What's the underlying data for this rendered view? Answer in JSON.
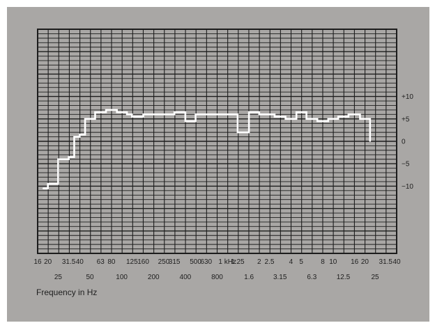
{
  "chart_data": {
    "type": "line",
    "style": "step",
    "xlabel": "Frequency in Hz",
    "ylabel": "",
    "x_scale": "log",
    "x_ticks_row1": [
      "16",
      "20",
      "31.5",
      "40",
      "63",
      "80",
      "125",
      "160",
      "250",
      "315",
      "500",
      "630",
      "1 kHz",
      "1.25",
      "2",
      "2.5",
      "4",
      "5",
      "8",
      "10",
      "16",
      "20",
      "31.5",
      "40"
    ],
    "x_ticks_row2": [
      "25",
      "50",
      "100",
      "200",
      "400",
      "800",
      "1.6",
      "3.15",
      "6.3",
      "12.5",
      "25"
    ],
    "x_tick_values_row1": [
      16,
      20,
      31.5,
      40,
      63,
      80,
      125,
      160,
      250,
      315,
      500,
      630,
      1000,
      1250,
      2000,
      2500,
      4000,
      5000,
      8000,
      10000,
      16000,
      20000,
      31500,
      40000
    ],
    "x_tick_values_row2": [
      25,
      50,
      100,
      200,
      400,
      800,
      1600,
      3150,
      6300,
      12500,
      25000
    ],
    "y_ticks": [
      10,
      5,
      0,
      -5,
      -10
    ],
    "y_tick_labels": [
      "+10",
      "+5",
      "0",
      "−5",
      "−10"
    ],
    "ylim": [
      -25,
      25
    ],
    "xlim": [
      16,
      40000
    ],
    "grid": true,
    "line_color": "#ffffff",
    "grid_color": "#1c1c1c",
    "background_color": "#a9a7a5",
    "series": [
      {
        "x": [
          18,
          20,
          22.4,
          25,
          28,
          31.5,
          35.5,
          40,
          45,
          50,
          56,
          63,
          71,
          80,
          90,
          100,
          112,
          125,
          140,
          160,
          180,
          200,
          224,
          250,
          280,
          315,
          355,
          400,
          450,
          500,
          560,
          630,
          710,
          800,
          900,
          1000,
          1120,
          1250,
          1400,
          1600,
          1800,
          2000,
          2240,
          2500,
          2800,
          3150,
          3550,
          4000,
          4500,
          5000,
          5600,
          6300,
          7100,
          8000,
          9000,
          10000,
          11200,
          12500,
          14000,
          16000,
          18000,
          20000,
          22400
        ],
        "y": [
          -10.5,
          -9.5,
          -9.5,
          -4,
          -4,
          -3.5,
          1,
          1.5,
          5,
          5,
          6.5,
          6.5,
          7,
          7,
          6.5,
          6.5,
          6,
          5.5,
          5.5,
          6,
          6,
          6,
          6,
          6,
          6,
          6.5,
          6.5,
          4.5,
          4.5,
          6,
          6,
          6,
          6,
          6,
          6,
          6,
          6,
          2,
          2,
          6.5,
          6.5,
          6,
          6,
          6,
          5.5,
          5.5,
          5,
          5,
          6.5,
          6.5,
          5,
          5,
          4.5,
          4.5,
          5,
          5,
          5.5,
          5.5,
          6,
          6,
          5,
          5,
          0
        ]
      }
    ]
  }
}
